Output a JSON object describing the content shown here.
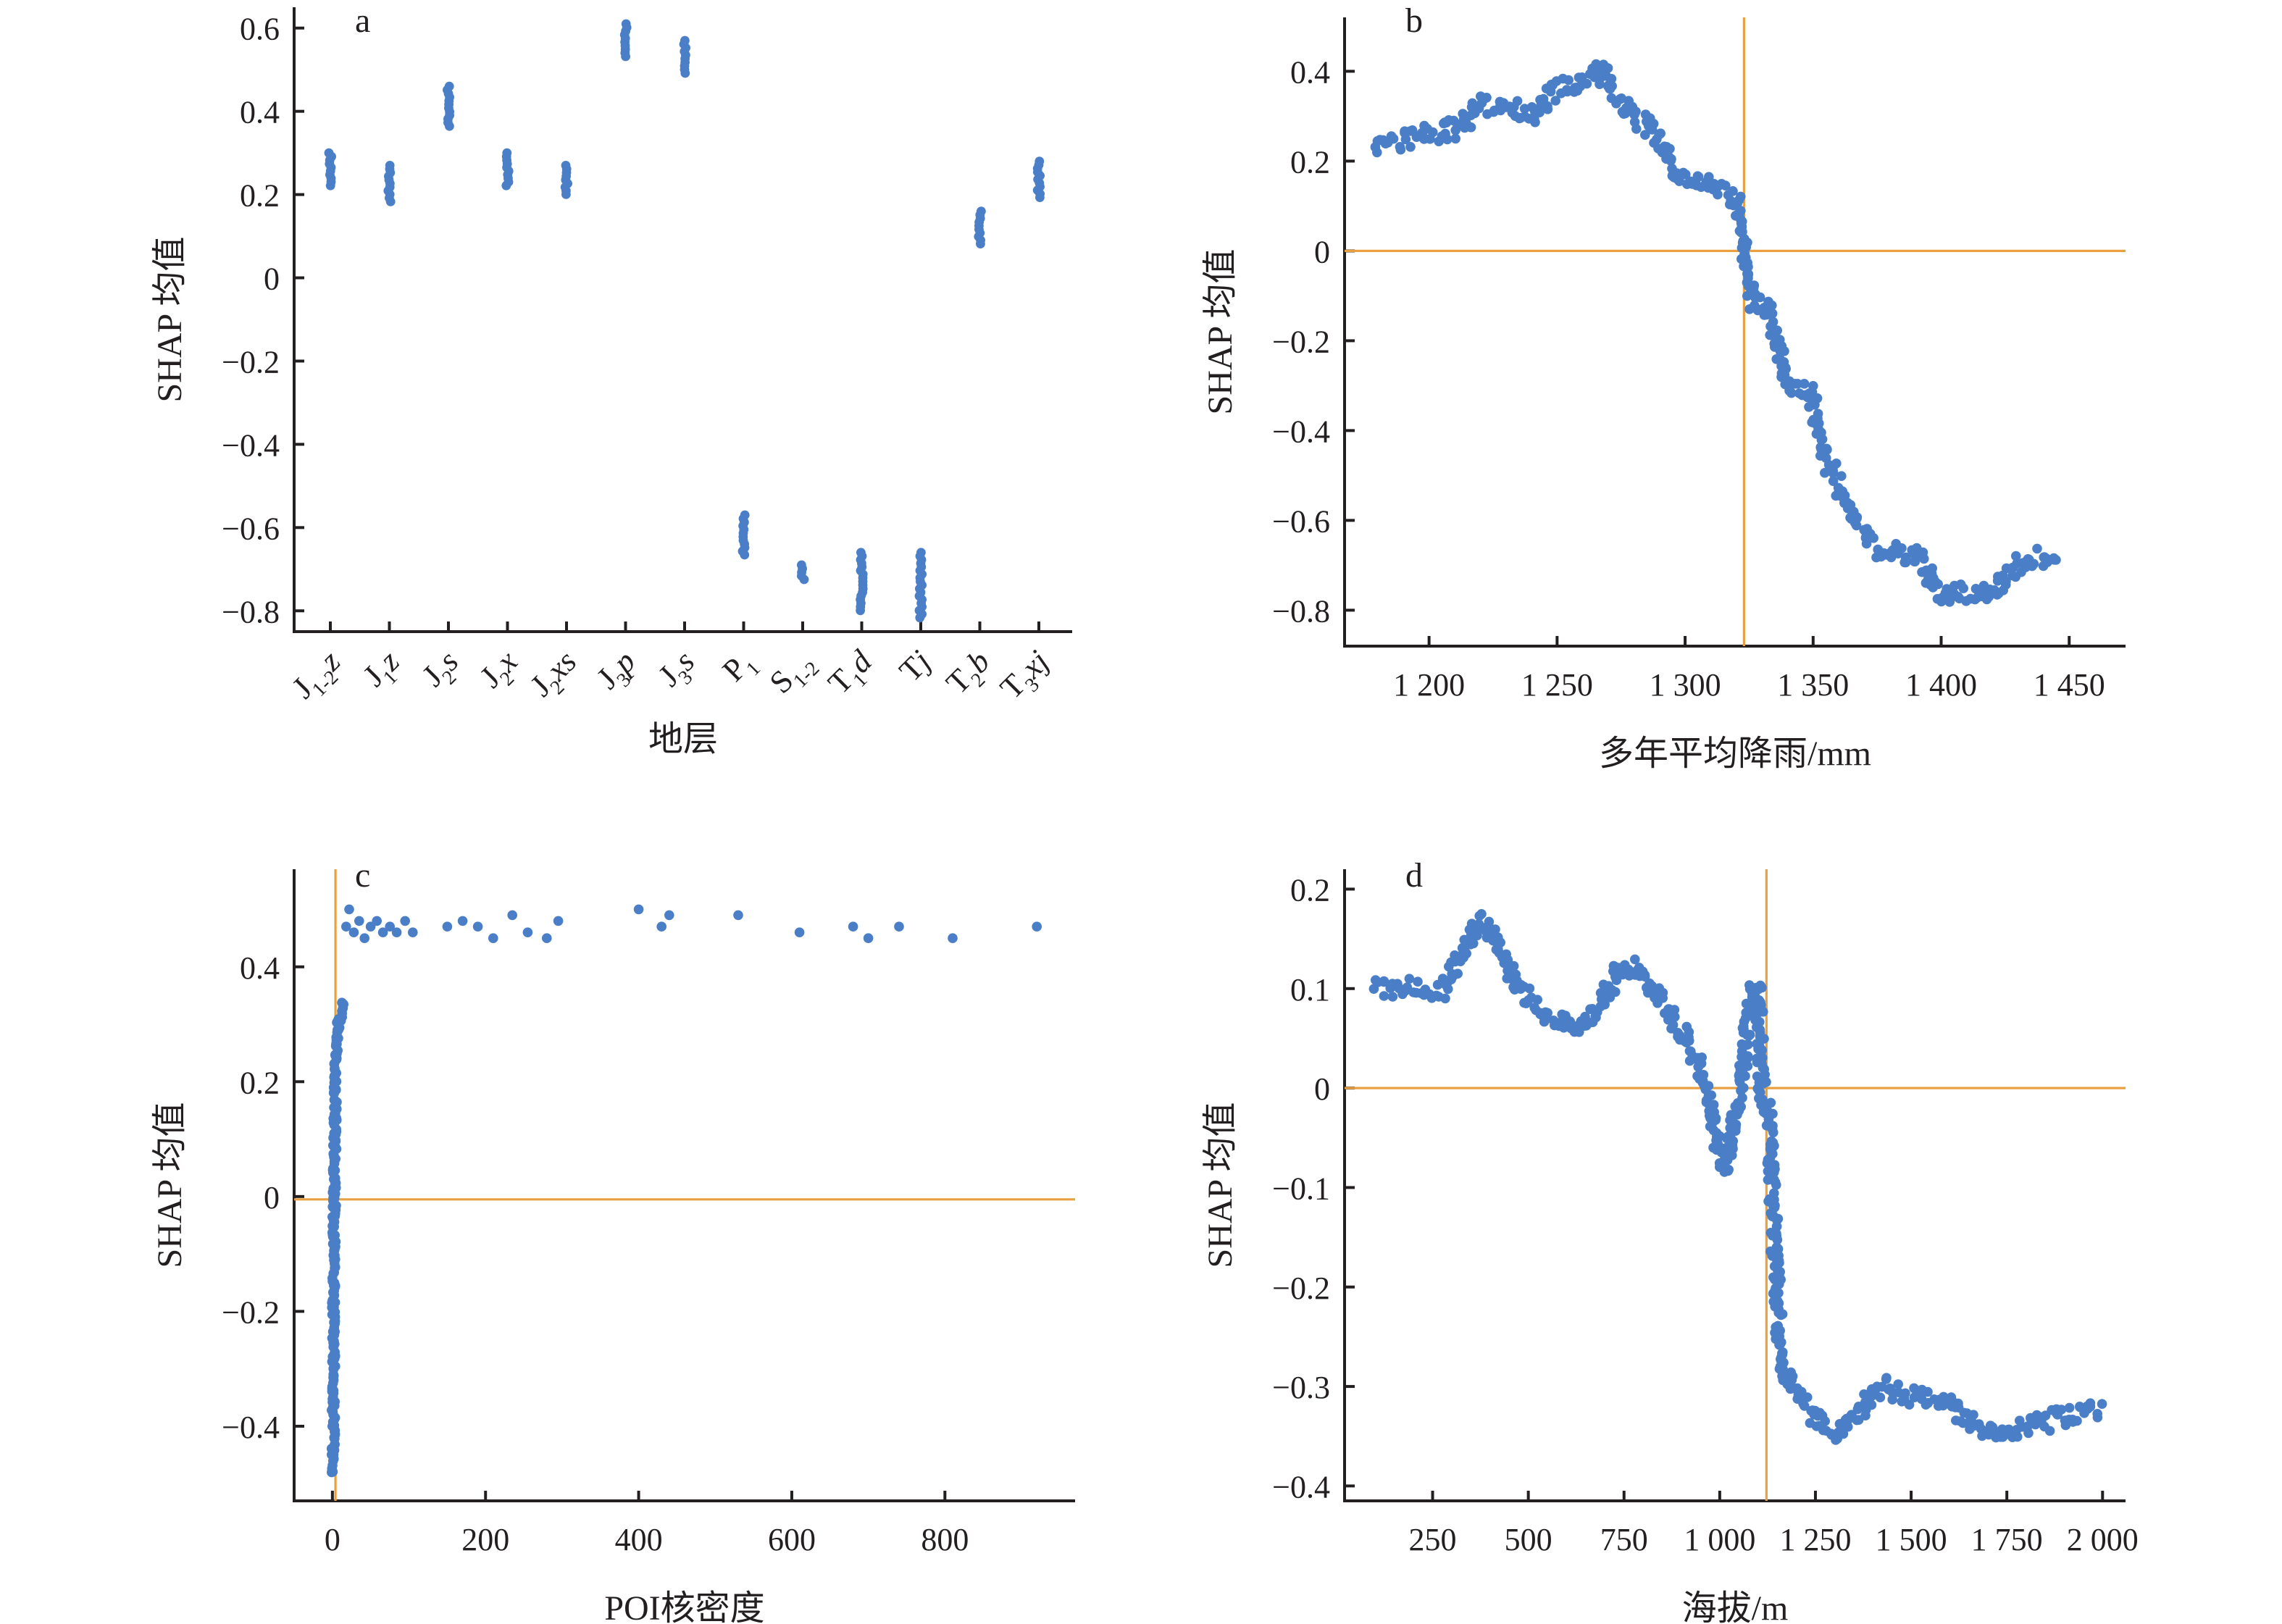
{
  "colors": {
    "points": "#4a7fc8",
    "reference": "#e8a040",
    "axis": "#231f20"
  },
  "chart_data": [
    {
      "id": "a",
      "type": "scatter",
      "panel_label": "a",
      "xlabel": "地层",
      "ylabel": "SHAP 均值",
      "ylim": [
        -0.85,
        0.65
      ],
      "yticks": [
        0.6,
        0.4,
        0.2,
        0,
        -0.2,
        -0.4,
        -0.6,
        -0.8
      ],
      "ytick_labels": [
        "0.6",
        "0.4",
        "0.2",
        "0",
        "−0.2",
        "−0.4",
        "−0.6",
        "−0.8"
      ],
      "categories": [
        {
          "main": "J",
          "sub": "1-2",
          "tail": "z"
        },
        {
          "main": "J",
          "sub": "1",
          "tail": "z"
        },
        {
          "main": "J",
          "sub": "2",
          "tail": "s"
        },
        {
          "main": "J",
          "sub": "2",
          "tail": "x"
        },
        {
          "main": "J",
          "sub": "2",
          "tail": "xs"
        },
        {
          "main": "J",
          "sub": "3",
          "tail": "p"
        },
        {
          "main": "J",
          "sub": "3",
          "tail": "s"
        },
        {
          "main": "P",
          "sub": "1",
          "tail": ""
        },
        {
          "main": "S",
          "sub": "1-2",
          "tail": ""
        },
        {
          "main": "T",
          "sub": "1",
          "tail": "d"
        },
        {
          "main": "T",
          "sub": "",
          "tail": "j"
        },
        {
          "main": "T",
          "sub": "2",
          "tail": "b"
        },
        {
          "main": "T",
          "sub": "3",
          "tail": "xj"
        }
      ],
      "ranges": [
        [
          0.22,
          0.3
        ],
        [
          0.18,
          0.27
        ],
        [
          0.36,
          0.46
        ],
        [
          0.22,
          0.3
        ],
        [
          0.2,
          0.27
        ],
        [
          0.53,
          0.61
        ],
        [
          0.49,
          0.57
        ],
        [
          -0.67,
          -0.57
        ],
        [
          -0.73,
          -0.69
        ],
        [
          -0.8,
          -0.66
        ],
        [
          -0.82,
          -0.66
        ],
        [
          0.08,
          0.16
        ],
        [
          0.19,
          0.28
        ]
      ]
    },
    {
      "id": "b",
      "type": "scatter",
      "panel_label": "b",
      "xlabel": "多年平均降雨/mm",
      "ylabel": "SHAP 均值",
      "xlim": [
        1167,
        1472
      ],
      "ylim": [
        -0.88,
        0.52
      ],
      "xticks": [
        1200,
        1250,
        1300,
        1350,
        1400,
        1450
      ],
      "xtick_labels": [
        "1 200",
        "1 250",
        "1 300",
        "1 350",
        "1 400",
        "1 450"
      ],
      "yticks": [
        0.4,
        0.2,
        0,
        -0.2,
        -0.4,
        -0.6,
        -0.8
      ],
      "ytick_labels": [
        "0.4",
        "0.2",
        "0",
        "−0.2",
        "−0.4",
        "−0.6",
        "−0.8"
      ],
      "reference": {
        "x": 1323,
        "y": 0
      },
      "trend": [
        [
          1178,
          0.24
        ],
        [
          1190,
          0.25
        ],
        [
          1200,
          0.26
        ],
        [
          1210,
          0.27
        ],
        [
          1220,
          0.32
        ],
        [
          1230,
          0.33
        ],
        [
          1240,
          0.3
        ],
        [
          1250,
          0.36
        ],
        [
          1260,
          0.37
        ],
        [
          1266,
          0.41
        ],
        [
          1272,
          0.35
        ],
        [
          1280,
          0.3
        ],
        [
          1290,
          0.25
        ],
        [
          1296,
          0.17
        ],
        [
          1305,
          0.15
        ],
        [
          1315,
          0.14
        ],
        [
          1320,
          0.1
        ],
        [
          1323,
          0.0
        ],
        [
          1327,
          -0.12
        ],
        [
          1333,
          -0.14
        ],
        [
          1340,
          -0.3
        ],
        [
          1348,
          -0.3
        ],
        [
          1355,
          -0.46
        ],
        [
          1362,
          -0.55
        ],
        [
          1368,
          -0.61
        ],
        [
          1375,
          -0.67
        ],
        [
          1390,
          -0.68
        ],
        [
          1400,
          -0.77
        ],
        [
          1410,
          -0.76
        ],
        [
          1420,
          -0.76
        ],
        [
          1430,
          -0.7
        ],
        [
          1445,
          -0.67
        ]
      ]
    },
    {
      "id": "c",
      "type": "scatter",
      "panel_label": "c",
      "xlabel": "POI核密度",
      "ylabel": "SHAP 均值",
      "xlim": [
        -50,
        970
      ],
      "ylim": [
        -0.53,
        0.57
      ],
      "xticks": [
        0,
        200,
        400,
        600,
        800
      ],
      "xtick_labels": [
        "0",
        "200",
        "400",
        "600",
        "800"
      ],
      "yticks": [
        0.4,
        0.2,
        0,
        -0.2,
        -0.4
      ],
      "ytick_labels": [
        "0.4",
        "0.2",
        "0",
        "−0.2",
        "−0.4"
      ],
      "reference": {
        "x": 4,
        "y": -0.005
      },
      "trend": [
        [
          1,
          -0.48
        ],
        [
          1.5,
          -0.3
        ],
        [
          2,
          -0.1
        ],
        [
          3,
          0.1
        ],
        [
          4,
          0.22
        ],
        [
          8,
          0.3
        ],
        [
          14,
          0.34
        ]
      ],
      "scatter": [
        [
          18,
          0.47
        ],
        [
          22,
          0.5
        ],
        [
          28,
          0.46
        ],
        [
          35,
          0.48
        ],
        [
          42,
          0.45
        ],
        [
          50,
          0.47
        ],
        [
          58,
          0.48
        ],
        [
          66,
          0.46
        ],
        [
          75,
          0.47
        ],
        [
          84,
          0.46
        ],
        [
          95,
          0.48
        ],
        [
          105,
          0.46
        ],
        [
          150,
          0.47
        ],
        [
          170,
          0.48
        ],
        [
          190,
          0.47
        ],
        [
          210,
          0.45
        ],
        [
          235,
          0.49
        ],
        [
          255,
          0.46
        ],
        [
          280,
          0.45
        ],
        [
          295,
          0.48
        ],
        [
          400,
          0.5
        ],
        [
          430,
          0.47
        ],
        [
          440,
          0.49
        ],
        [
          530,
          0.49
        ],
        [
          610,
          0.46
        ],
        [
          680,
          0.47
        ],
        [
          700,
          0.45
        ],
        [
          740,
          0.47
        ],
        [
          810,
          0.45
        ],
        [
          920,
          0.47
        ]
      ]
    },
    {
      "id": "d",
      "type": "scatter",
      "panel_label": "d",
      "xlabel": "海拔/m",
      "ylabel": "SHAP 均值",
      "xlim": [
        20,
        2060
      ],
      "ylim": [
        -0.415,
        0.22
      ],
      "xticks": [
        250,
        500,
        750,
        1000,
        1250,
        1500,
        1750,
        2000
      ],
      "xtick_labels": [
        "250",
        "500",
        "750",
        "1 000",
        "1 250",
        "1 500",
        "1 750",
        "2 000"
      ],
      "yticks": [
        0.2,
        0.1,
        0,
        -0.1,
        -0.2,
        -0.3,
        -0.4
      ],
      "ytick_labels": [
        "0.2",
        "0.1",
        "0",
        "−0.1",
        "−0.2",
        "−0.3",
        "−0.4"
      ],
      "reference": {
        "x": 1122,
        "y": 0
      },
      "trend": [
        [
          100,
          0.1
        ],
        [
          200,
          0.1
        ],
        [
          280,
          0.1
        ],
        [
          320,
          0.13
        ],
        [
          370,
          0.17
        ],
        [
          420,
          0.15
        ],
        [
          470,
          0.1
        ],
        [
          520,
          0.08
        ],
        [
          580,
          0.07
        ],
        [
          640,
          0.06
        ],
        [
          680,
          0.08
        ],
        [
          740,
          0.12
        ],
        [
          780,
          0.12
        ],
        [
          820,
          0.1
        ],
        [
          860,
          0.08
        ],
        [
          910,
          0.05
        ],
        [
          950,
          0.02
        ],
        [
          980,
          -0.03
        ],
        [
          1000,
          -0.07
        ],
        [
          1020,
          -0.08
        ],
        [
          1060,
          0.02
        ],
        [
          1080,
          0.09
        ],
        [
          1100,
          0.1
        ],
        [
          1110,
          0.0
        ],
        [
          1130,
          -0.03
        ],
        [
          1140,
          -0.13
        ],
        [
          1160,
          -0.28
        ],
        [
          1200,
          -0.3
        ],
        [
          1250,
          -0.33
        ],
        [
          1300,
          -0.35
        ],
        [
          1350,
          -0.33
        ],
        [
          1420,
          -0.3
        ],
        [
          1500,
          -0.31
        ],
        [
          1600,
          -0.32
        ],
        [
          1700,
          -0.35
        ],
        [
          1800,
          -0.34
        ],
        [
          1900,
          -0.33
        ],
        [
          2000,
          -0.32
        ]
      ]
    }
  ]
}
